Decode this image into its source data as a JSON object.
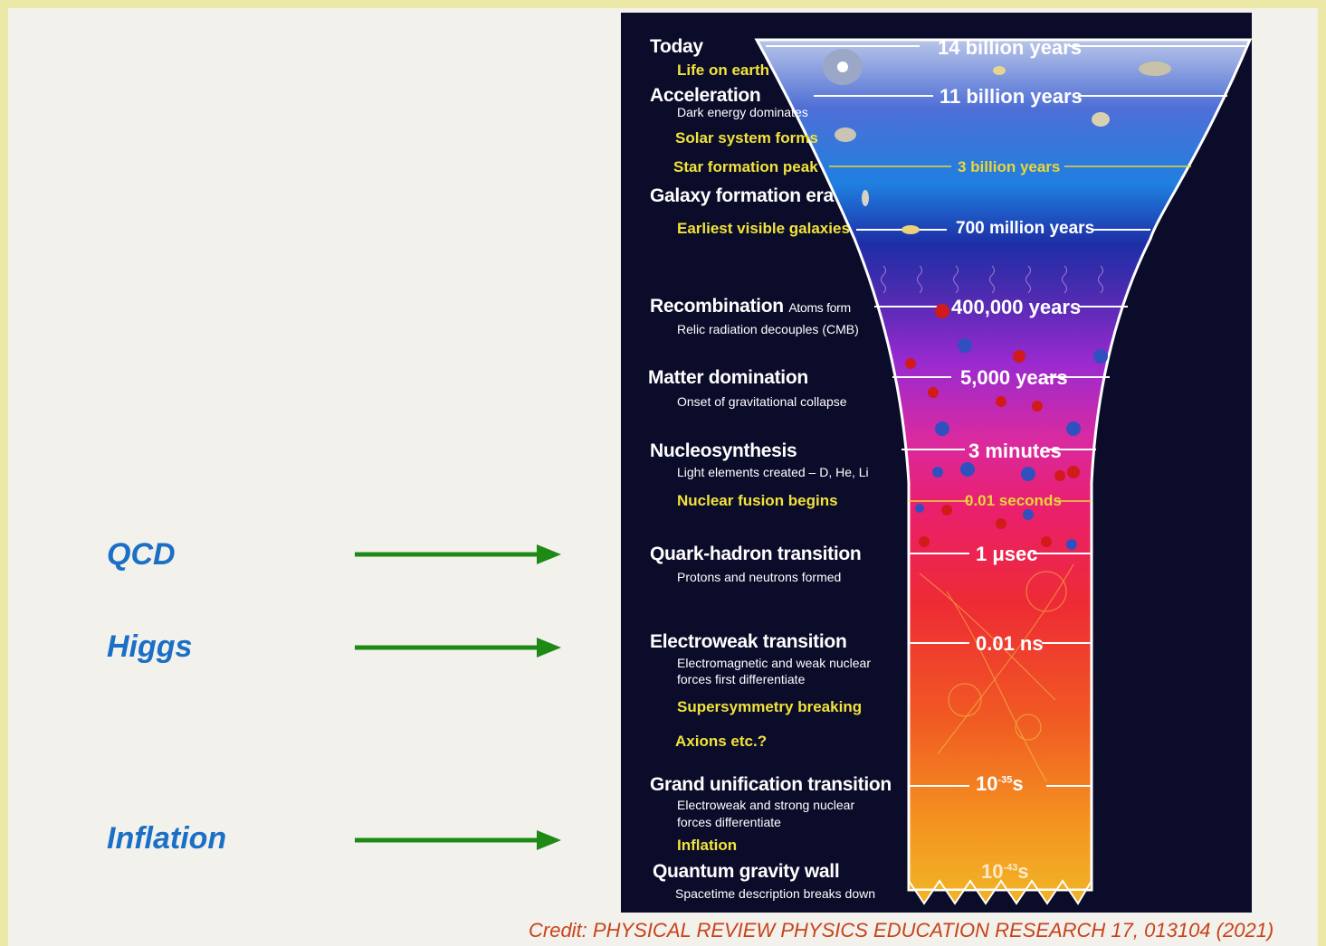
{
  "side_labels": {
    "qcd": "QCD",
    "higgs": "Higgs",
    "inflation": "Inflation"
  },
  "colors": {
    "side_label": "#1a6fc6",
    "arrow": "#1e8a16",
    "credit": "#c8431a",
    "era_yellow": "#f1e33a"
  },
  "eras": {
    "today": "Today",
    "life_on_earth": "Life on earth",
    "acceleration": "Acceleration",
    "dark_energy": "Dark energy dominates",
    "solar_system": "Solar system forms",
    "star_formation": "Star formation peak",
    "galaxy_era": "Galaxy formation era",
    "earliest_galaxies": "Earliest visible galaxies",
    "recombination": "Recombination",
    "atoms_form": "Atoms form",
    "relic_radiation": "Relic radiation decouples (CMB)",
    "matter_domination": "Matter domination",
    "onset_collapse": "Onset of gravitational collapse",
    "nucleosynthesis": "Nucleosynthesis",
    "light_elements": "Light elements created – D, He, Li",
    "nuclear_fusion": "Nuclear fusion begins",
    "quark_hadron": "Quark-hadron transition",
    "protons_neutrons": "Protons and neutrons formed",
    "electroweak": "Electroweak transition",
    "electroweak_desc_1": "Electromagnetic and weak nuclear",
    "electroweak_desc_2": "forces first differentiate",
    "supersymmetry": "Supersymmetry breaking",
    "axions": "Axions etc.?",
    "grand_unification": "Grand unification transition",
    "gut_desc_1": "Electroweak and strong nuclear",
    "gut_desc_2": "forces differentiate",
    "inflation": "Inflation",
    "quantum_gravity": "Quantum gravity wall",
    "spacetime": "Spacetime description breaks down"
  },
  "times": {
    "t14b": "14 billion years",
    "t11b": "11 billion years",
    "t3b": "3 billion years",
    "t700m": "700 million years",
    "t400k": "400,000 years",
    "t5000": "5,000 years",
    "t3min": "3 minutes",
    "t001s": "0.01 seconds",
    "t1us": "1 μsec",
    "t001ns": "0.01 ns",
    "t35_base": "10",
    "t35_exp": "-35",
    "t35_unit": "s",
    "t43_base": "10",
    "t43_exp": "-43",
    "t43_unit": "s"
  },
  "credit": "Credit: PHYSICAL REVIEW PHYSICS EDUCATION RESEARCH 17, 013104 (2021)"
}
